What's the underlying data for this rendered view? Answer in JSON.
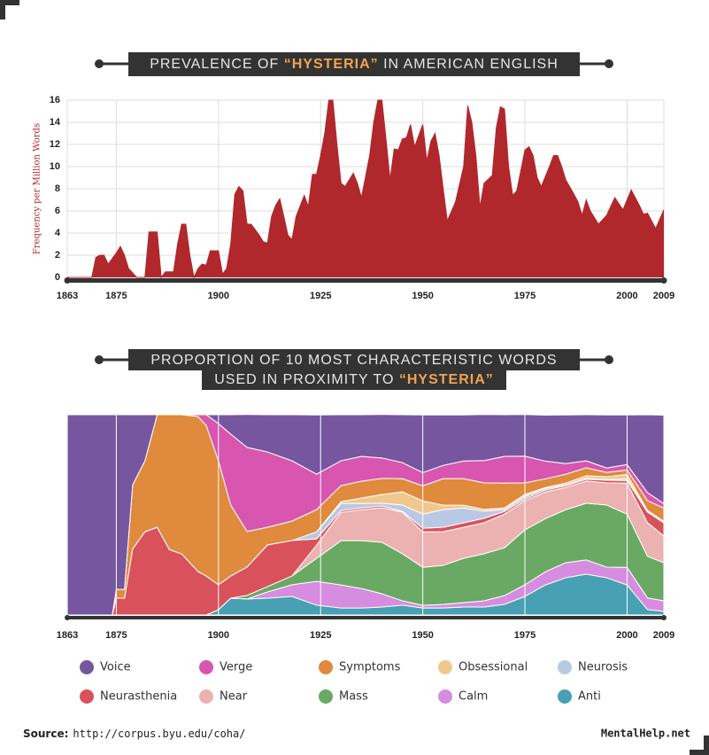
{
  "chart_data": [
    {
      "type": "area",
      "title_lines": [
        [
          "PREVALENCE OF ",
          "“HYSTERIA”",
          " IN AMERICAN ENGLISH"
        ]
      ],
      "ylabel": "Frequency per Million Words",
      "color": "#b0282c",
      "x": [
        1863,
        1869,
        1870,
        1871,
        1872,
        1873,
        1875,
        1876,
        1877,
        1878,
        1880,
        1882,
        1883,
        1885,
        1886,
        1887,
        1889,
        1890,
        1891,
        1892,
        1893,
        1894,
        1895,
        1896,
        1897,
        1898,
        1900,
        1901,
        1902,
        1903,
        1904,
        1905,
        1906,
        1907,
        1908,
        1910,
        1911,
        1912,
        1913,
        1914,
        1915,
        1916,
        1917,
        1918,
        1919,
        1921,
        1922,
        1923,
        1924,
        1925,
        1926,
        1927,
        1928,
        1929,
        1930,
        1931,
        1933,
        1934,
        1935,
        1937,
        1938,
        1939,
        1940,
        1941,
        1942,
        1943,
        1944,
        1945,
        1946,
        1947,
        1948,
        1950,
        1951,
        1952,
        1953,
        1954,
        1955,
        1956,
        1958,
        1960,
        1961,
        1962,
        1963,
        1964,
        1965,
        1967,
        1968,
        1969,
        1970,
        1971,
        1972,
        1973,
        1975,
        1976,
        1977,
        1978,
        1979,
        1981,
        1982,
        1983,
        1984,
        1985,
        1987,
        1988,
        1989,
        1990,
        1991,
        1993,
        1995,
        1997,
        1999,
        2001,
        2003,
        2004,
        2005,
        2007,
        2009
      ],
      "values": [
        0,
        0,
        1.8,
        2,
        2,
        1.2,
        2.2,
        2.8,
        2,
        0.8,
        0,
        0,
        4.1,
        4.1,
        0,
        0.5,
        0.5,
        3,
        4.8,
        4.8,
        2,
        0,
        0.8,
        1.2,
        1.1,
        2.4,
        2.4,
        0.3,
        0.8,
        3,
        7.5,
        8.2,
        7.8,
        4.8,
        4.8,
        3.8,
        3.2,
        3.1,
        5.5,
        6.5,
        7.1,
        5.5,
        3.8,
        3.4,
        5.5,
        7.4,
        6.4,
        9.3,
        9.3,
        11,
        13,
        16,
        16,
        12,
        8.5,
        8.2,
        9.4,
        8.5,
        7.2,
        11,
        14,
        16,
        16,
        12.5,
        8.8,
        11.6,
        11.5,
        12.5,
        12.6,
        13.8,
        11.8,
        13.8,
        10.5,
        12.3,
        13,
        11,
        8,
        5.1,
        6.8,
        10,
        15.5,
        14,
        11,
        6.3,
        8.5,
        9.2,
        13.5,
        15.4,
        15.2,
        10,
        7.4,
        7.8,
        11.5,
        11.8,
        11,
        9,
        8.2,
        10,
        11,
        11,
        10,
        8.8,
        7.5,
        6.8,
        5.6,
        7,
        6,
        4.8,
        5.6,
        7.2,
        6.1,
        7.9,
        6.5,
        5.7,
        5.8,
        4.4,
        6.1
      ],
      "xlim": [
        1863,
        2009
      ],
      "xticks": [
        1863,
        1875,
        1900,
        1925,
        1950,
        1975,
        2000,
        2009
      ],
      "ylim": [
        0,
        16
      ],
      "yticks": [
        0,
        2,
        4,
        6,
        8,
        10,
        12,
        14,
        16
      ],
      "grid": true
    },
    {
      "type": "stacked_area",
      "title_lines": [
        [
          "PROPORTION OF 10 MOST CHARACTERISTIC WORDS"
        ],
        [
          "USED IN PROXIMITY TO ",
          "“HYSTERIA”"
        ]
      ],
      "x": [
        1863,
        1874,
        1875,
        1877,
        1879,
        1882,
        1885,
        1888,
        1891,
        1895,
        1897,
        1900,
        1903,
        1907,
        1912,
        1918,
        1924,
        1930,
        1935,
        1940,
        1945,
        1950,
        1955,
        1960,
        1965,
        1970,
        1975,
        1980,
        1985,
        1990,
        1995,
        2000,
        2005,
        2009
      ],
      "series": [
        {
          "name": "Voice",
          "color": "#76579f",
          "values": [
            100,
            100,
            87.2,
            87.2,
            35,
            23,
            0,
            0,
            0,
            0,
            0,
            4.4,
            9.7,
            16.4,
            18.6,
            23.0,
            29.6,
            23.0,
            20.8,
            21.7,
            23.9,
            28.8,
            25.2,
            23.0,
            23.0,
            20.8,
            20.8,
            23.0,
            24.3,
            23.0,
            26.5,
            24.8,
            38.9,
            44.2
          ]
        },
        {
          "name": "Verge",
          "color": "#d856b0",
          "values": [
            0,
            0,
            0,
            0,
            0,
            0,
            0,
            0,
            0,
            0.9,
            5.3,
            18.6,
            35.4,
            42.0,
            37.6,
            30.1,
            17.7,
            12.4,
            12.4,
            10.2,
            8.0,
            6.6,
            6.6,
            8.8,
            11.1,
            13.3,
            13.3,
            8.8,
            5.3,
            3.5,
            2.2,
            2.7,
            4.0,
            2.2
          ]
        },
        {
          "name": "Symptoms",
          "color": "#e08a3e",
          "values": [
            0,
            0,
            4.4,
            4.4,
            32,
            35.4,
            56.2,
            67.3,
            69.5,
            77.4,
            75.2,
            61.9,
            35.4,
            17.7,
            8.8,
            9.7,
            11.1,
            8.0,
            8.4,
            8.0,
            6.6,
            7.5,
            13.3,
            13.3,
            13.3,
            12.4,
            5.8,
            4.4,
            4.4,
            4.0,
            2.2,
            2.2,
            4.9,
            6.6
          ]
        },
        {
          "name": "Obsessional",
          "color": "#f0c88e",
          "values": [
            0,
            0,
            0,
            0,
            0,
            0,
            0,
            0,
            0,
            0,
            0,
            0,
            0,
            0,
            0,
            0,
            0,
            0.9,
            2.7,
            4.4,
            6.6,
            6.6,
            2.2,
            1.3,
            0.9,
            0.9,
            0.9,
            0.4,
            0.9,
            1.3,
            1.3,
            2.2,
            0.4,
            0.4
          ]
        },
        {
          "name": "Neurosis",
          "color": "#b9c9e5",
          "values": [
            0,
            0,
            0,
            0,
            0,
            0,
            0,
            0,
            0,
            0,
            0,
            0,
            0,
            0,
            0,
            0,
            3.5,
            3.5,
            2.2,
            1.3,
            3.1,
            7.1,
            8.8,
            7.5,
            3.5,
            0.9,
            1.3,
            0.9,
            0.4,
            0.4,
            0.4,
            0.9,
            0.4,
            0.4
          ]
        },
        {
          "name": "Neurasthenia",
          "color": "#d9525b",
          "values": [
            0,
            0,
            8.4,
            8.4,
            33,
            41.6,
            43.8,
            32.7,
            30.5,
            21.7,
            19.5,
            12.4,
            11.1,
            14.2,
            20.8,
            17.7,
            3.1,
            0.9,
            0.9,
            0.9,
            0.4,
            1.8,
            2.2,
            2.2,
            2.2,
            1.3,
            0.9,
            0.9,
            0.9,
            0.9,
            1.3,
            1.3,
            5.3,
            6.6
          ]
        },
        {
          "name": "Near",
          "color": "#ecb2b2",
          "values": [
            0,
            0,
            0,
            0,
            0,
            0,
            0,
            0,
            0,
            0,
            0,
            0,
            0,
            0,
            0,
            0,
            6.6,
            14.2,
            15.5,
            17.3,
            20.8,
            17.7,
            16.8,
            15.5,
            15.5,
            16.8,
            14.6,
            13.3,
            11.1,
            11.1,
            11.1,
            15.5,
            16.8,
            13.3
          ]
        },
        {
          "name": "Mass",
          "color": "#69a963",
          "values": [
            0,
            0,
            0,
            0,
            0,
            0,
            0,
            0,
            0,
            0,
            0,
            0,
            0,
            1.8,
            2.7,
            4.4,
            11.5,
            22.1,
            23.9,
            25.7,
            23.5,
            19.0,
            19.5,
            22.1,
            23.5,
            23.9,
            27.4,
            26.5,
            26.5,
            28.3,
            31.0,
            26.5,
            20.8,
            19.0
          ]
        },
        {
          "name": "Calm",
          "color": "#d68de0",
          "values": [
            0,
            0,
            0,
            0,
            0,
            0,
            0,
            0,
            0,
            0,
            0,
            0,
            0,
            0,
            3.1,
            5.8,
            11.9,
            11.5,
            9.7,
            6.6,
            2.2,
            1.3,
            1.8,
            2.2,
            3.1,
            4.4,
            5.8,
            6.6,
            7.5,
            7.1,
            5.3,
            8.8,
            5.8,
            5.3
          ]
        },
        {
          "name": "Anti",
          "color": "#48a0b4",
          "values": [
            0,
            0,
            0,
            0,
            0,
            0,
            0,
            0,
            0,
            0,
            0,
            2.7,
            8.4,
            8.0,
            8.4,
            9.3,
            4.9,
            3.5,
            3.5,
            4.0,
            4.9,
            3.5,
            3.5,
            4.0,
            4.0,
            5.3,
            9.3,
            15.0,
            18.6,
            20.4,
            18.6,
            15.0,
            2.7,
            1.8
          ]
        }
      ],
      "xlim": [
        1863,
        2009
      ],
      "xticks": [
        1863,
        1875,
        1900,
        1925,
        1950,
        1975,
        2000,
        2009
      ],
      "ylim": [
        0,
        100
      ],
      "legend": "bottom"
    }
  ],
  "footer": {
    "source_label": "Source:",
    "source_url": "http://corpus.byu.edu/coha/",
    "brand": "MentalHelp.net"
  }
}
